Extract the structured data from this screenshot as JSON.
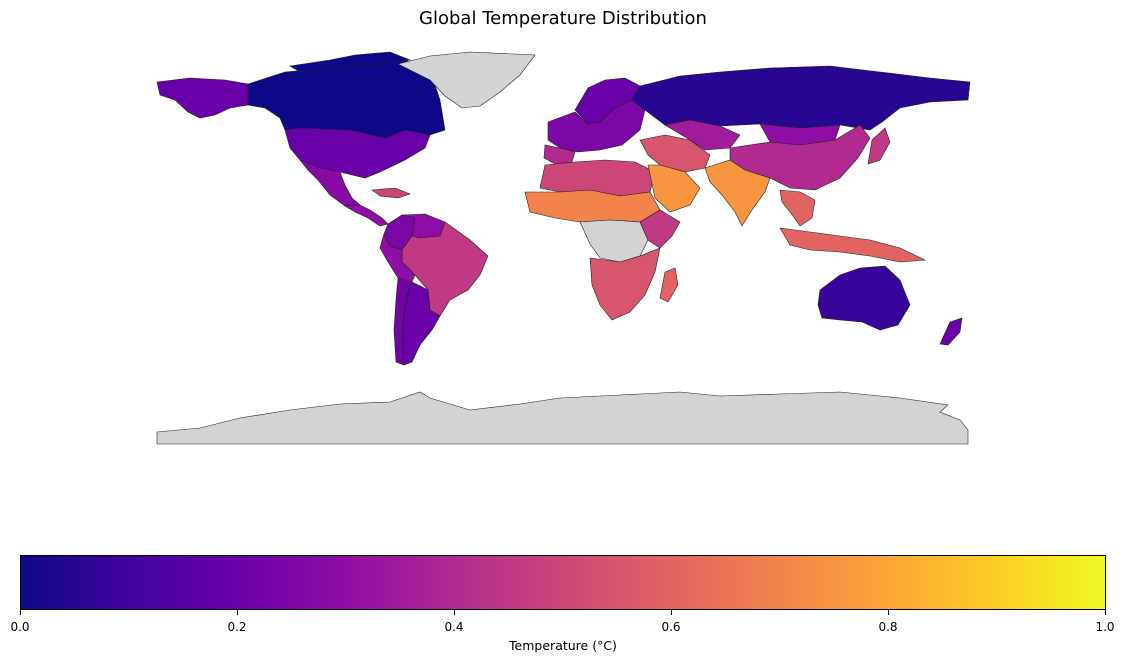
{
  "title": "Global Temperature Distribution",
  "colorbar": {
    "label": "Temperature (°C)",
    "colormap": "plasma",
    "range": [
      0.0,
      1.0
    ],
    "ticks": [
      "0.0",
      "0.2",
      "0.4",
      "0.6",
      "0.8",
      "1.0"
    ],
    "tick_values": [
      0.0,
      0.2,
      0.4,
      0.6,
      0.8,
      1.0
    ],
    "stops": [
      "#0d0887",
      "#41049d",
      "#6a00a8",
      "#8f0da4",
      "#b12a90",
      "#cc4778",
      "#e16462",
      "#f2844b",
      "#fca636",
      "#fcce25",
      "#f0f921"
    ]
  },
  "map": {
    "projection": "plate-carree",
    "no_data_color": "#d3d3d3",
    "regions": [
      {
        "name": "Canada",
        "value": 0.0
      },
      {
        "name": "Alaska",
        "value": 0.2
      },
      {
        "name": "Greenland",
        "value": null
      },
      {
        "name": "United States",
        "value": 0.2
      },
      {
        "name": "Mexico",
        "value": 0.28
      },
      {
        "name": "Central America",
        "value": 0.3
      },
      {
        "name": "Caribbean",
        "value": 0.5
      },
      {
        "name": "Colombia",
        "value": 0.25
      },
      {
        "name": "Venezuela",
        "value": 0.3
      },
      {
        "name": "Brazil",
        "value": 0.45
      },
      {
        "name": "Peru",
        "value": 0.3
      },
      {
        "name": "Argentina",
        "value": 0.2
      },
      {
        "name": "Chile",
        "value": 0.22
      },
      {
        "name": "Russia",
        "value": 0.05
      },
      {
        "name": "Scandinavia",
        "value": 0.2
      },
      {
        "name": "Europe",
        "value": 0.25
      },
      {
        "name": "Iberia",
        "value": 0.4
      },
      {
        "name": "North Africa",
        "value": 0.5
      },
      {
        "name": "Sahel",
        "value": 0.7
      },
      {
        "name": "Central Africa",
        "value": null
      },
      {
        "name": "Southern Africa",
        "value": 0.55
      },
      {
        "name": "East Africa",
        "value": 0.45
      },
      {
        "name": "Madagascar",
        "value": 0.6
      },
      {
        "name": "Arabian Peninsula",
        "value": 0.75
      },
      {
        "name": "Middle East",
        "value": 0.55
      },
      {
        "name": "Kazakhstan",
        "value": 0.35
      },
      {
        "name": "China",
        "value": 0.4
      },
      {
        "name": "Mongolia",
        "value": 0.3
      },
      {
        "name": "India",
        "value": 0.75
      },
      {
        "name": "Southeast Asia",
        "value": 0.6
      },
      {
        "name": "Indonesia",
        "value": 0.6
      },
      {
        "name": "Japan",
        "value": 0.45
      },
      {
        "name": "Australia",
        "value": 0.08
      },
      {
        "name": "New Zealand",
        "value": 0.2
      },
      {
        "name": "Antarctica",
        "value": null
      }
    ]
  }
}
